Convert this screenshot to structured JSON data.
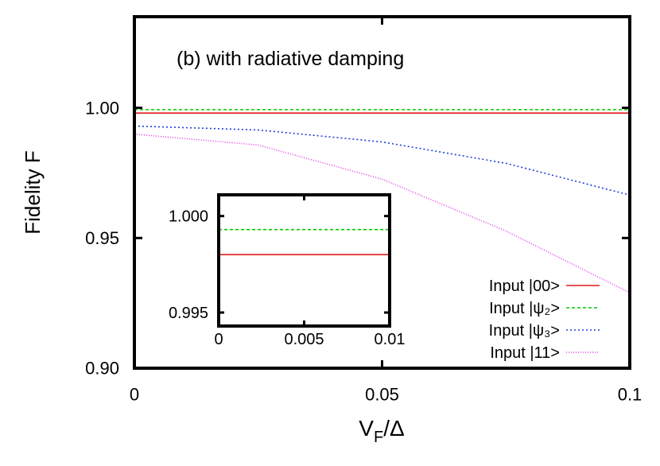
{
  "chart_data": [
    {
      "type": "line",
      "annotation": "(b) with radiative damping",
      "ylabel": "Fidelity F",
      "xlabel": {
        "main": "V",
        "sub": "F",
        "rest": "/Δ"
      },
      "x": [
        0,
        0.025,
        0.05,
        0.075,
        0.1
      ],
      "xlim": [
        0,
        0.1
      ],
      "xticks": [
        0,
        0.05,
        0.1
      ],
      "ylim": [
        0.9,
        1.035
      ],
      "yticks": [
        {
          "value": 0.9,
          "label": "0.90"
        },
        {
          "value": 0.95,
          "label": "0.95"
        },
        {
          "value": 1.0,
          "label": "1.00"
        }
      ],
      "legend": "lower right",
      "series": [
        {
          "name": "Input |00>",
          "color": "#e41a1c",
          "dash": "none",
          "values": [
            0.998,
            0.998,
            0.998,
            0.998,
            0.998
          ]
        },
        {
          "name": "Input |ψ₂>",
          "color": "#00cc00",
          "dash": "4 3",
          "values": [
            0.9993,
            0.9993,
            0.9993,
            0.9993,
            0.9993
          ]
        },
        {
          "name": "Input |ψ₃>",
          "color": "#1f3fd6",
          "dash": "2 3",
          "values": [
            0.993,
            0.9915,
            0.9869,
            0.9787,
            0.9665
          ]
        },
        {
          "name": "Input  |11>",
          "color": "#e040e0",
          "dash": "1 2",
          "values": [
            0.9899,
            0.9857,
            0.9726,
            0.9527,
            0.929
          ]
        }
      ]
    },
    {
      "type": "line",
      "x": [
        0,
        0.01
      ],
      "xlim": [
        0,
        0.01
      ],
      "xticks": [
        0,
        0.005,
        0.01
      ],
      "ylim": [
        0.9943,
        1.0011
      ],
      "yticks": [
        {
          "value": 0.995,
          "label": "0.995"
        },
        {
          "value": 1.0,
          "label": "1.000"
        }
      ],
      "series": [
        {
          "color": "#e41a1c",
          "dash": "none",
          "values": [
            0.998,
            0.998
          ]
        },
        {
          "color": "#00cc00",
          "dash": "4 3",
          "values": [
            0.9993,
            0.9993
          ]
        }
      ]
    }
  ]
}
